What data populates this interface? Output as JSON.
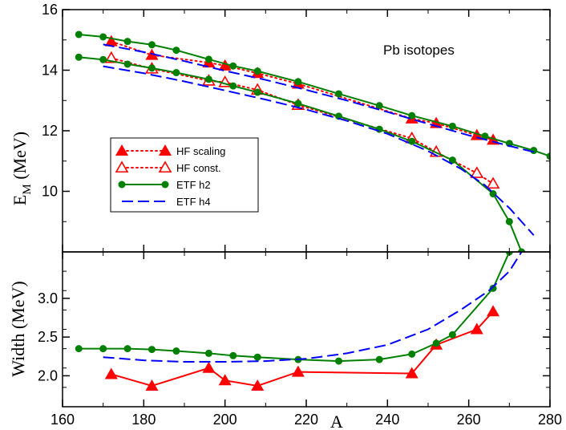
{
  "chart_data": [
    {
      "type": "line",
      "panel": "top",
      "annotation": "Pb isotopes",
      "ylabel": "E",
      "ylabel_sub": "M",
      "ylabel_unit": " (MeV)",
      "xlim": [
        160,
        280
      ],
      "ylim": [
        8,
        16
      ],
      "yticks": [
        10,
        12,
        14,
        16
      ],
      "series": [
        {
          "name": "HF scaling",
          "style": "hf-scaling",
          "color": "#ff0000",
          "x": [
            172,
            182,
            196,
            200,
            208,
            218,
            246,
            252,
            262,
            266
          ],
          "y": [
            14.95,
            14.5,
            14.25,
            14.15,
            13.9,
            13.55,
            12.4,
            12.25,
            11.85,
            11.7
          ]
        },
        {
          "name": "HF const.",
          "style": "hf-const",
          "color": "#ff0000",
          "x": [
            172,
            182,
            196,
            200,
            208,
            218,
            246,
            252,
            262,
            266
          ],
          "y": [
            14.4,
            14.05,
            13.65,
            13.6,
            13.35,
            12.85,
            11.75,
            11.3,
            10.6,
            10.25
          ]
        },
        {
          "name": "ETF h2",
          "style": "etf-h2",
          "color": "#008000",
          "x": [
            164,
            170,
            176,
            182,
            188,
            196,
            202,
            208,
            218,
            228,
            238,
            246,
            256,
            264,
            270,
            276,
            280
          ],
          "y": [
            15.18,
            15.1,
            14.95,
            14.84,
            14.66,
            14.36,
            14.14,
            13.97,
            13.62,
            13.22,
            12.83,
            12.5,
            12.15,
            11.82,
            11.58,
            11.35,
            11.16
          ]
        },
        {
          "name": "ETF h2",
          "style": "etf-h2",
          "color": "#008000",
          "legend": false,
          "x": [
            164,
            170,
            176,
            182,
            188,
            196,
            202,
            208,
            218,
            228,
            238,
            246,
            256,
            266,
            270,
            273
          ],
          "y": [
            14.43,
            14.35,
            14.2,
            14.07,
            13.92,
            13.7,
            13.48,
            13.27,
            12.9,
            12.48,
            12.05,
            11.65,
            11.03,
            9.92,
            9.0,
            8.0
          ]
        },
        {
          "name": "ETF h4",
          "style": "etf-h4",
          "color": "#0000ff",
          "x": [
            170,
            180,
            190,
            200,
            210,
            220,
            230,
            240,
            250,
            260,
            270,
            276
          ],
          "y": [
            14.85,
            14.6,
            14.3,
            13.98,
            13.68,
            13.35,
            13.0,
            12.62,
            12.23,
            11.85,
            11.5,
            11.3
          ]
        },
        {
          "name": "ETF h4",
          "style": "etf-h4",
          "color": "#0000ff",
          "legend": false,
          "x": [
            170,
            180,
            190,
            200,
            210,
            220,
            230,
            240,
            250,
            258,
            264,
            270,
            276
          ],
          "y": [
            14.13,
            13.9,
            13.63,
            13.33,
            13.03,
            12.7,
            12.33,
            11.9,
            11.33,
            10.75,
            10.2,
            9.45,
            8.55
          ]
        }
      ],
      "legend": {
        "placement": "center-left",
        "entries": [
          "HF scaling",
          "HF const.",
          "ETF h2",
          "ETF h4"
        ]
      }
    },
    {
      "type": "line",
      "panel": "bottom",
      "xlabel": "A",
      "ylabel": "Width  (MeV)",
      "xlim": [
        160,
        280
      ],
      "ylim": [
        1.6,
        3.6
      ],
      "xticks": [
        160,
        180,
        200,
        220,
        240,
        260,
        280
      ],
      "yticks": [
        2.0,
        2.5,
        3.0
      ],
      "ytick_labels": [
        "2.0",
        "2.5",
        "3.0"
      ],
      "series": [
        {
          "name": "HF scaling",
          "style": "hf-width",
          "color": "#ff0000",
          "x": [
            172,
            182,
            196,
            200,
            208,
            218,
            246,
            252,
            262,
            266
          ],
          "y": [
            2.02,
            1.87,
            2.1,
            1.94,
            1.87,
            2.05,
            2.03,
            2.4,
            2.6,
            2.83
          ]
        },
        {
          "name": "ETF h2",
          "style": "etf-h2",
          "color": "#008000",
          "x": [
            164,
            170,
            176,
            182,
            188,
            196,
            202,
            208,
            218,
            228,
            238,
            246,
            252,
            256,
            266,
            270
          ],
          "y": [
            2.35,
            2.35,
            2.35,
            2.34,
            2.32,
            2.29,
            2.26,
            2.24,
            2.21,
            2.19,
            2.21,
            2.28,
            2.42,
            2.53,
            3.13,
            3.6
          ]
        },
        {
          "name": "ETF h4",
          "style": "etf-h4",
          "color": "#0000ff",
          "x": [
            170,
            180,
            190,
            200,
            210,
            220,
            230,
            240,
            250,
            258,
            265,
            270,
            273
          ],
          "y": [
            2.24,
            2.2,
            2.18,
            2.18,
            2.19,
            2.22,
            2.29,
            2.4,
            2.6,
            2.85,
            3.1,
            3.35,
            3.6
          ]
        }
      ]
    }
  ]
}
